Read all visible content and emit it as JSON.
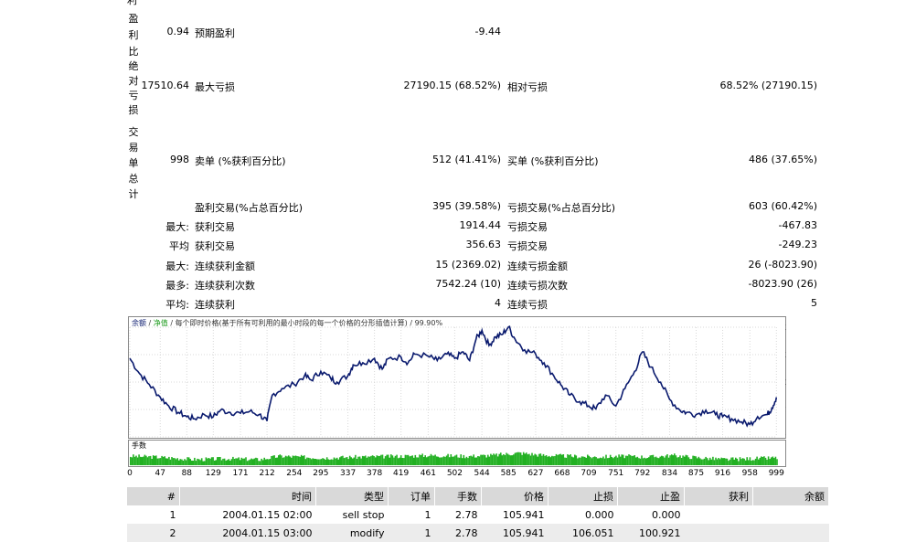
{
  "stats": {
    "cut_top_label": "利",
    "profit_factor": {
      "vlabel": [
        "盈",
        "利",
        "比"
      ],
      "value": "0.94",
      "label": "预期盈利",
      "value2": "-9.44"
    },
    "drawdown": {
      "vlabel": [
        "绝",
        "对",
        "亏",
        "损"
      ],
      "value": "17510.64",
      "label": "最大亏损",
      "value2": "27190.15 (68.52%)",
      "label3": "相对亏损",
      "value3": "68.52% (27190.15)"
    },
    "trades": {
      "vlabel": [
        "交",
        "易",
        "单",
        "总",
        "计"
      ],
      "value": "998",
      "label": "卖单 (%获利百分比)",
      "value2": "512 (41.41%)",
      "label3": "买单 (%获利百分比)",
      "value3": "486 (37.65%)"
    },
    "rows": [
      {
        "pre": "",
        "label": "盈利交易(%占总百分比)",
        "value": "395 (39.58%)",
        "label2": "亏损交易(%占总百分比)",
        "value2": "603 (60.42%)"
      },
      {
        "pre": "最大:",
        "label": "获利交易",
        "value": "1914.44",
        "label2": "亏损交易",
        "value2": "-467.83"
      },
      {
        "pre": "平均",
        "label": "获利交易",
        "value": "356.63",
        "label2": "亏损交易",
        "value2": "-249.23"
      },
      {
        "pre": "最大:",
        "label": "连续获利金额",
        "value": "15 (2369.02)",
        "label2": "连续亏损金额",
        "value2": "26 (-8023.90)"
      },
      {
        "pre": "最多:",
        "label": "连续获利次数",
        "value": "7542.24 (10)",
        "label2": "连续亏损次数",
        "value2": "-8023.90 (26)"
      },
      {
        "pre": "平均:",
        "label": "连续获利",
        "value": "4",
        "label2": "连续亏损",
        "value2": "5"
      }
    ]
  },
  "chart_data": {
    "type": "line",
    "legend_text": "余额 / 净值 / 每个即时价格(基于所有可利用的最小时段的每一个价格的分形插值计算) / 99.90%",
    "legend_parts": [
      "余额",
      " / ",
      "净值",
      " / 每个即时价格(基于所有可利用的最小时段的每一个价格的分形插值计算) / 99.90%"
    ],
    "y_ticks": [
      "36726",
      "30374",
      "24022",
      "17670",
      "11318"
    ],
    "ylim": [
      11318,
      36726
    ],
    "x_ticks": [
      "0",
      "47",
      "88",
      "129",
      "171",
      "212",
      "254",
      "295",
      "337",
      "378",
      "419",
      "461",
      "502",
      "544",
      "585",
      "627",
      "668",
      "709",
      "751",
      "792",
      "834",
      "875",
      "916",
      "958",
      "999"
    ],
    "xlim": [
      0,
      1000
    ],
    "series": [
      {
        "name": "余额",
        "color": "#0a1a6e",
        "points": [
          [
            0,
            29500
          ],
          [
            15,
            26000
          ],
          [
            30,
            23500
          ],
          [
            47,
            20500
          ],
          [
            60,
            18500
          ],
          [
            75,
            17000
          ],
          [
            88,
            16000
          ],
          [
            100,
            15500
          ],
          [
            115,
            16500
          ],
          [
            129,
            16000
          ],
          [
            140,
            17500
          ],
          [
            155,
            17000
          ],
          [
            171,
            16800
          ],
          [
            185,
            17200
          ],
          [
            200,
            16500
          ],
          [
            212,
            15000
          ],
          [
            220,
            21000
          ],
          [
            235,
            22500
          ],
          [
            254,
            23500
          ],
          [
            270,
            25500
          ],
          [
            280,
            24500
          ],
          [
            295,
            26500
          ],
          [
            310,
            25000
          ],
          [
            320,
            24000
          ],
          [
            337,
            25500
          ],
          [
            345,
            28000
          ],
          [
            360,
            28500
          ],
          [
            378,
            29500
          ],
          [
            390,
            27000
          ],
          [
            400,
            29500
          ],
          [
            419,
            29800
          ],
          [
            430,
            28500
          ],
          [
            440,
            30500
          ],
          [
            461,
            30000
          ],
          [
            475,
            29000
          ],
          [
            490,
            30500
          ],
          [
            502,
            29500
          ],
          [
            515,
            31000
          ],
          [
            525,
            29000
          ],
          [
            535,
            34000
          ],
          [
            544,
            36000
          ],
          [
            555,
            32500
          ],
          [
            565,
            34500
          ],
          [
            575,
            35000
          ],
          [
            585,
            36800
          ],
          [
            595,
            34000
          ],
          [
            610,
            31500
          ],
          [
            627,
            30500
          ],
          [
            640,
            28500
          ],
          [
            655,
            25500
          ],
          [
            668,
            23000
          ],
          [
            680,
            21000
          ],
          [
            695,
            19500
          ],
          [
            709,
            18500
          ],
          [
            720,
            17800
          ],
          [
            735,
            21000
          ],
          [
            751,
            18500
          ],
          [
            765,
            22500
          ],
          [
            780,
            26500
          ],
          [
            792,
            31000
          ],
          [
            805,
            27500
          ],
          [
            820,
            24000
          ],
          [
            834,
            20000
          ],
          [
            850,
            17500
          ],
          [
            860,
            17000
          ],
          [
            875,
            16500
          ],
          [
            890,
            17500
          ],
          [
            905,
            16500
          ],
          [
            916,
            16000
          ],
          [
            930,
            15500
          ],
          [
            945,
            14800
          ],
          [
            958,
            14200
          ],
          [
            970,
            16000
          ],
          [
            985,
            16500
          ],
          [
            992,
            18000
          ],
          [
            999,
            20500
          ]
        ]
      }
    ],
    "volume": {
      "label": "手数",
      "color": "#22b022",
      "profile": [
        [
          0,
          0.55
        ],
        [
          40,
          0.5
        ],
        [
          100,
          0.35
        ],
        [
          150,
          0.4
        ],
        [
          200,
          0.35
        ],
        [
          230,
          0.55
        ],
        [
          300,
          0.45
        ],
        [
          350,
          0.5
        ],
        [
          420,
          0.55
        ],
        [
          460,
          0.6
        ],
        [
          520,
          0.55
        ],
        [
          560,
          0.6
        ],
        [
          600,
          0.75
        ],
        [
          640,
          0.6
        ],
        [
          680,
          0.55
        ],
        [
          720,
          0.5
        ],
        [
          760,
          0.55
        ],
        [
          800,
          0.5
        ],
        [
          840,
          0.6
        ],
        [
          880,
          0.45
        ],
        [
          920,
          0.35
        ],
        [
          960,
          0.4
        ],
        [
          999,
          0.45
        ]
      ]
    }
  },
  "orders_table": {
    "headers": [
      "#",
      "时间",
      "类型",
      "订单",
      "手数",
      "价格",
      "止损",
      "止盈",
      "获利",
      "余额"
    ],
    "rows": [
      [
        "1",
        "2004.01.15 02:00",
        "sell stop",
        "1",
        "2.78",
        "105.941",
        "0.000",
        "0.000",
        "",
        ""
      ],
      [
        "2",
        "2004.01.15 03:00",
        "modify",
        "1",
        "2.78",
        "105.941",
        "106.051",
        "100.921",
        "",
        ""
      ]
    ]
  }
}
